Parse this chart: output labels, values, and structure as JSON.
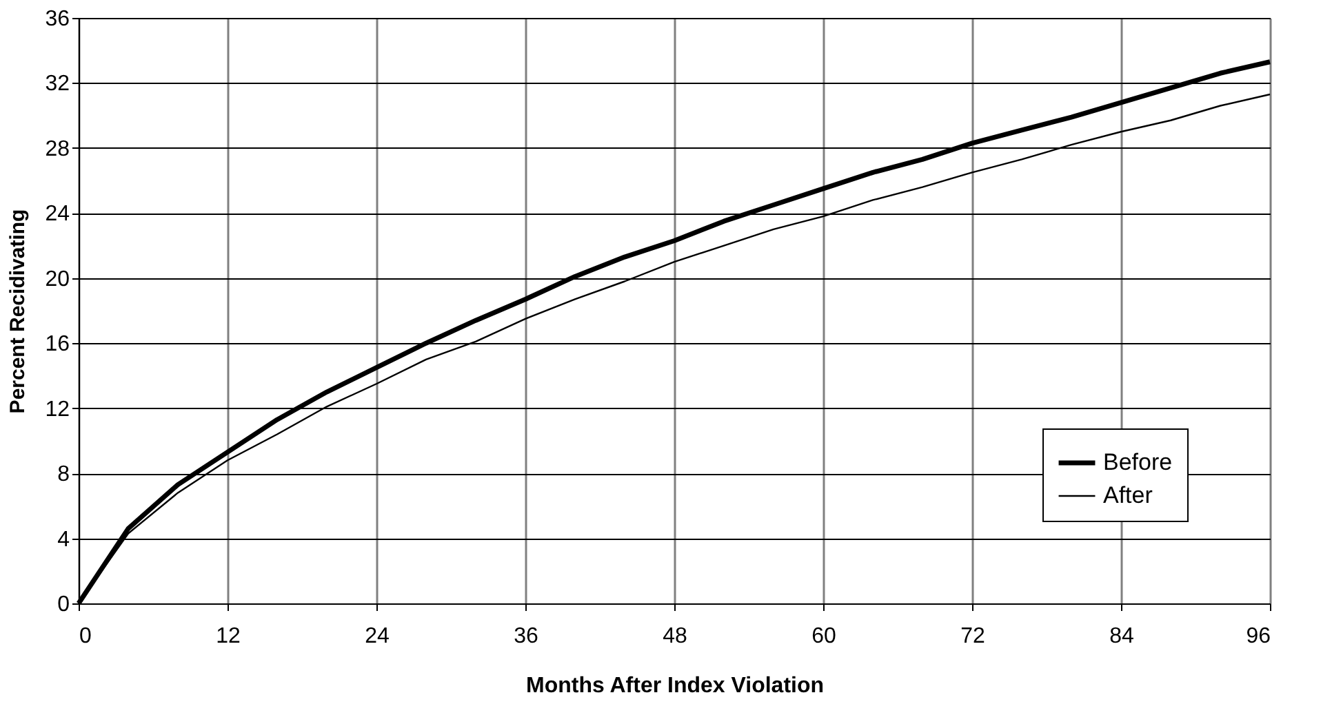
{
  "chart_data": {
    "type": "line",
    "xlabel": "Months After Index Violation",
    "ylabel": "Percent Recidivating",
    "x": [
      0,
      4,
      8,
      12,
      16,
      20,
      24,
      28,
      32,
      36,
      40,
      44,
      48,
      52,
      56,
      60,
      64,
      68,
      72,
      76,
      80,
      84,
      88,
      92,
      96
    ],
    "series": [
      {
        "name": "Before",
        "color": "#000000",
        "values": [
          0,
          4.6,
          7.3,
          9.3,
          11.3,
          13.0,
          14.5,
          16.0,
          17.4,
          18.7,
          20.1,
          21.3,
          22.3,
          23.5,
          24.5,
          25.5,
          26.5,
          27.3,
          28.3,
          29.1,
          29.9,
          30.8,
          31.7,
          32.6,
          33.3
        ]
      },
      {
        "name": "After",
        "color": "#000000",
        "values": [
          0,
          4.3,
          6.8,
          8.8,
          10.4,
          12.1,
          13.5,
          15.0,
          16.1,
          17.5,
          18.7,
          19.8,
          21.0,
          22.0,
          23.0,
          23.8,
          24.8,
          25.6,
          26.5,
          27.3,
          28.2,
          29.0,
          29.7,
          30.6,
          31.3
        ]
      }
    ],
    "xlim": [
      0,
      96
    ],
    "xticks": [
      0,
      12,
      24,
      36,
      48,
      60,
      72,
      84,
      96
    ],
    "ylim": [
      0,
      36
    ],
    "yticks": [
      0,
      4,
      8,
      12,
      16,
      20,
      24,
      28,
      32,
      36
    ],
    "grid": true,
    "legend": "bottom right",
    "marker": "none",
    "line_style": "solid"
  }
}
